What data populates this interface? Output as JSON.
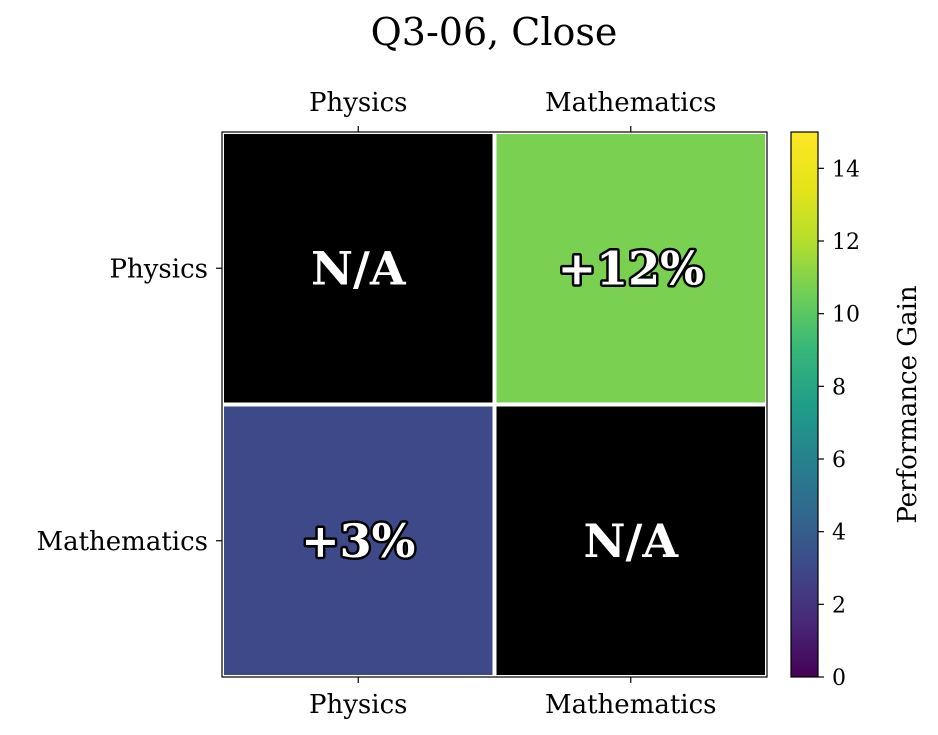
{
  "chart_data": {
    "type": "heatmap",
    "title": "Q3-06, Close",
    "x_categories": [
      "Physics",
      "Mathematics"
    ],
    "y_categories": [
      "Physics",
      "Mathematics"
    ],
    "values": [
      [
        null,
        12
      ],
      [
        3,
        null
      ]
    ],
    "cell_labels": [
      [
        "N/A",
        "+12%"
      ],
      [
        "+3%",
        "N/A"
      ]
    ],
    "colorbar": {
      "label": "Performance Gain",
      "min": 0,
      "max": 15,
      "ticks": [
        "0",
        "2",
        "4",
        "6",
        "8",
        "10",
        "12",
        "14"
      ],
      "colormap": "viridis"
    },
    "missing_color": "#000000",
    "colors": {
      "cell_12": "#7ad151",
      "cell_3": "#3e4989"
    }
  }
}
